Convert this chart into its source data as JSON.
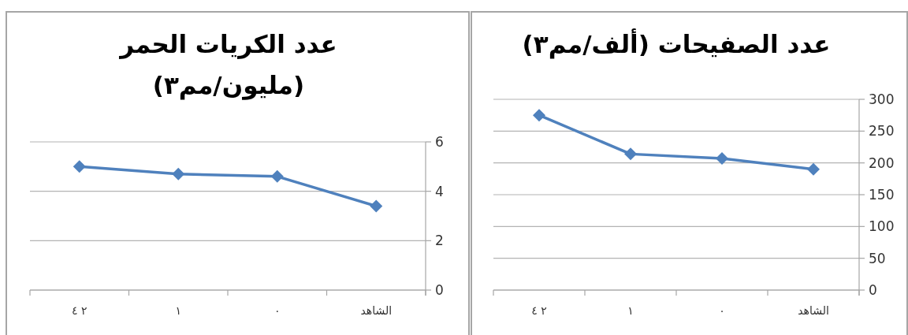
{
  "chart_data": [
    {
      "type": "line",
      "title": "عدد الكريات الحمر (مليون/مم٣)",
      "categories": [
        "٢ ٤",
        "١",
        "٠",
        "الشاهد"
      ],
      "values": [
        5.0,
        4.7,
        4.6,
        3.4
      ],
      "color": "#4f81bd",
      "ylim": [
        0,
        6
      ],
      "yticks": [
        0,
        2,
        4,
        6
      ],
      "grid": "y",
      "marker": "diamond"
    },
    {
      "type": "line",
      "title": "عدد الصفيحات (ألف/مم٣)",
      "categories": [
        "٢ ٤",
        "١",
        "٠",
        "الشاهد"
      ],
      "values": [
        275,
        214,
        207,
        190
      ],
      "color": "#4f81bd",
      "ylim": [
        0,
        300
      ],
      "yticks": [
        0,
        50,
        100,
        150,
        200,
        250,
        300
      ],
      "grid": "y",
      "marker": "diamond"
    }
  ]
}
